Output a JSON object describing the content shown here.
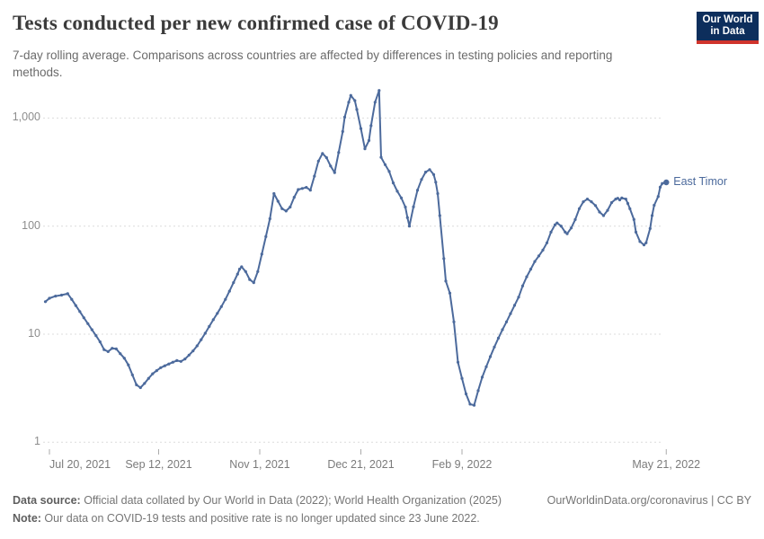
{
  "header": {
    "title": "Tests conducted per new confirmed case of COVID-19",
    "subtitle": "7-day rolling average. Comparisons across countries are affected by differences in testing policies and reporting methods.",
    "logo_line1": "Our World",
    "logo_line2": "in Data"
  },
  "footer": {
    "source_label": "Data source:",
    "source_text": " Official data collated by Our World in Data (2022); World Health Organization (2025)",
    "right_text": "OurWorldinData.org/coronavirus | CC BY",
    "note_label": "Note:",
    "note_text": " Our data on COVID-19 tests and positive rate is no longer updated since 23 June 2022."
  },
  "colors": {
    "line": "#4C6A9C",
    "grid": "#dcdcdc",
    "tick_mark": "#ababab",
    "logo_bg": "#0d2e5c",
    "logo_red": "#d0342c"
  },
  "chart_data": {
    "type": "line",
    "title": "Tests conducted per new confirmed case of COVID-19",
    "series_name": "East Timor",
    "yscale": "log",
    "ylim": [
      1,
      2000
    ],
    "grid": true,
    "legend_position": "end-of-line",
    "y_ticks": [
      {
        "label": "1",
        "value": 1
      },
      {
        "label": "10",
        "value": 10
      },
      {
        "label": "100",
        "value": 100
      },
      {
        "label": "1,000",
        "value": 1000
      }
    ],
    "x_ticks": [
      {
        "label": "Jul 20, 2021",
        "date": "2021-07-20"
      },
      {
        "label": "Sep 12, 2021",
        "date": "2021-09-12"
      },
      {
        "label": "Nov 1, 2021",
        "date": "2021-11-01"
      },
      {
        "label": "Dec 21, 2021",
        "date": "2021-12-21"
      },
      {
        "label": "Feb 9, 2022",
        "date": "2022-02-09"
      },
      {
        "label": "May 21, 2022",
        "date": "2022-05-21"
      }
    ],
    "points": [
      [
        "2021-07-18",
        20
      ],
      [
        "2021-07-20",
        21.5
      ],
      [
        "2021-07-23",
        22.5
      ],
      [
        "2021-07-26",
        23
      ],
      [
        "2021-07-29",
        23.7
      ],
      [
        "2021-07-31",
        21
      ],
      [
        "2021-08-02",
        18.4
      ],
      [
        "2021-08-04",
        16.2
      ],
      [
        "2021-08-06",
        14.2
      ],
      [
        "2021-08-08",
        12.5
      ],
      [
        "2021-08-10",
        11
      ],
      [
        "2021-08-12",
        9.7
      ],
      [
        "2021-08-14",
        8.5
      ],
      [
        "2021-08-16",
        7.2
      ],
      [
        "2021-08-18",
        6.9
      ],
      [
        "2021-08-20",
        7.4
      ],
      [
        "2021-08-22",
        7.3
      ],
      [
        "2021-08-24",
        6.6
      ],
      [
        "2021-08-26",
        6
      ],
      [
        "2021-08-28",
        5.2
      ],
      [
        "2021-08-30",
        4.2
      ],
      [
        "2021-09-01",
        3.4
      ],
      [
        "2021-09-03",
        3.2
      ],
      [
        "2021-09-05",
        3.5
      ],
      [
        "2021-09-07",
        3.9
      ],
      [
        "2021-09-09",
        4.3
      ],
      [
        "2021-09-11",
        4.6
      ],
      [
        "2021-09-13",
        4.9
      ],
      [
        "2021-09-15",
        5.1
      ],
      [
        "2021-09-17",
        5.3
      ],
      [
        "2021-09-19",
        5.5
      ],
      [
        "2021-09-21",
        5.7
      ],
      [
        "2021-09-23",
        5.6
      ],
      [
        "2021-09-25",
        5.9
      ],
      [
        "2021-09-27",
        6.4
      ],
      [
        "2021-09-29",
        7
      ],
      [
        "2021-10-01",
        7.8
      ],
      [
        "2021-10-03",
        8.9
      ],
      [
        "2021-10-05",
        10.2
      ],
      [
        "2021-10-07",
        11.8
      ],
      [
        "2021-10-09",
        13.6
      ],
      [
        "2021-10-11",
        15.6
      ],
      [
        "2021-10-13",
        18
      ],
      [
        "2021-10-15",
        21
      ],
      [
        "2021-10-17",
        25
      ],
      [
        "2021-10-19",
        30
      ],
      [
        "2021-10-21",
        36
      ],
      [
        "2021-10-22",
        40
      ],
      [
        "2021-10-23",
        42
      ],
      [
        "2021-10-25",
        38
      ],
      [
        "2021-10-27",
        32
      ],
      [
        "2021-10-29",
        30
      ],
      [
        "2021-10-31",
        38
      ],
      [
        "2021-11-02",
        55
      ],
      [
        "2021-11-04",
        80
      ],
      [
        "2021-11-06",
        117
      ],
      [
        "2021-11-08",
        200
      ],
      [
        "2021-11-10",
        170
      ],
      [
        "2021-11-12",
        145
      ],
      [
        "2021-11-14",
        138
      ],
      [
        "2021-11-16",
        150
      ],
      [
        "2021-11-18",
        185
      ],
      [
        "2021-11-20",
        218
      ],
      [
        "2021-11-22",
        223
      ],
      [
        "2021-11-24",
        228
      ],
      [
        "2021-11-26",
        215
      ],
      [
        "2021-11-28",
        290
      ],
      [
        "2021-11-30",
        400
      ],
      [
        "2021-12-02",
        470
      ],
      [
        "2021-12-04",
        430
      ],
      [
        "2021-12-06",
        360
      ],
      [
        "2021-12-08",
        313
      ],
      [
        "2021-12-10",
        480
      ],
      [
        "2021-12-12",
        750
      ],
      [
        "2021-12-13",
        1020
      ],
      [
        "2021-12-15",
        1400
      ],
      [
        "2021-12-16",
        1620
      ],
      [
        "2021-12-18",
        1450
      ],
      [
        "2021-12-19",
        1200
      ],
      [
        "2021-12-21",
        800
      ],
      [
        "2021-12-23",
        520
      ],
      [
        "2021-12-25",
        620
      ],
      [
        "2021-12-26",
        850
      ],
      [
        "2021-12-28",
        1400
      ],
      [
        "2021-12-30",
        1800
      ],
      [
        "2021-12-31",
        433
      ],
      [
        "2022-01-02",
        370
      ],
      [
        "2022-01-04",
        320
      ],
      [
        "2022-01-06",
        251
      ],
      [
        "2022-01-08",
        210
      ],
      [
        "2022-01-10",
        182
      ],
      [
        "2022-01-12",
        150
      ],
      [
        "2022-01-13",
        120
      ],
      [
        "2022-01-14",
        100
      ],
      [
        "2022-01-16",
        151
      ],
      [
        "2022-01-18",
        215
      ],
      [
        "2022-01-20",
        270
      ],
      [
        "2022-01-22",
        316
      ],
      [
        "2022-01-24",
        333
      ],
      [
        "2022-01-26",
        300
      ],
      [
        "2022-01-27",
        255
      ],
      [
        "2022-01-28",
        200
      ],
      [
        "2022-01-29",
        125
      ],
      [
        "2022-01-31",
        50
      ],
      [
        "2022-02-01",
        31
      ],
      [
        "2022-02-03",
        24
      ],
      [
        "2022-02-05",
        13
      ],
      [
        "2022-02-07",
        5.5
      ],
      [
        "2022-02-09",
        3.9
      ],
      [
        "2022-02-11",
        2.8
      ],
      [
        "2022-02-13",
        2.25
      ],
      [
        "2022-02-15",
        2.2
      ],
      [
        "2022-02-17",
        3
      ],
      [
        "2022-02-19",
        4
      ],
      [
        "2022-02-21",
        5
      ],
      [
        "2022-02-23",
        6.2
      ],
      [
        "2022-02-25",
        7.6
      ],
      [
        "2022-02-27",
        9.2
      ],
      [
        "2022-03-01",
        11
      ],
      [
        "2022-03-03",
        13
      ],
      [
        "2022-03-05",
        15.5
      ],
      [
        "2022-03-07",
        18.5
      ],
      [
        "2022-03-09",
        22
      ],
      [
        "2022-03-11",
        28
      ],
      [
        "2022-03-13",
        34
      ],
      [
        "2022-03-15",
        40
      ],
      [
        "2022-03-17",
        47
      ],
      [
        "2022-03-19",
        53
      ],
      [
        "2022-03-21",
        60
      ],
      [
        "2022-03-23",
        70
      ],
      [
        "2022-03-25",
        88
      ],
      [
        "2022-03-27",
        103
      ],
      [
        "2022-03-28",
        107
      ],
      [
        "2022-03-30",
        100
      ],
      [
        "2022-04-01",
        88
      ],
      [
        "2022-04-02",
        85
      ],
      [
        "2022-04-04",
        96
      ],
      [
        "2022-04-06",
        115
      ],
      [
        "2022-04-08",
        145
      ],
      [
        "2022-04-10",
        168
      ],
      [
        "2022-04-12",
        178
      ],
      [
        "2022-04-14",
        168
      ],
      [
        "2022-04-16",
        155
      ],
      [
        "2022-04-18",
        135
      ],
      [
        "2022-04-20",
        125
      ],
      [
        "2022-04-22",
        140
      ],
      [
        "2022-04-24",
        165
      ],
      [
        "2022-04-26",
        178
      ],
      [
        "2022-04-27",
        181
      ],
      [
        "2022-04-28",
        175
      ],
      [
        "2022-04-29",
        182
      ],
      [
        "2022-05-01",
        178
      ],
      [
        "2022-05-02",
        162
      ],
      [
        "2022-05-03",
        145
      ],
      [
        "2022-05-05",
        115
      ],
      [
        "2022-05-06",
        88
      ],
      [
        "2022-05-08",
        72
      ],
      [
        "2022-05-10",
        67
      ],
      [
        "2022-05-11",
        70
      ],
      [
        "2022-05-13",
        95
      ],
      [
        "2022-05-14",
        125
      ],
      [
        "2022-05-15",
        156
      ],
      [
        "2022-05-17",
        188
      ],
      [
        "2022-05-18",
        229
      ],
      [
        "2022-05-19",
        248
      ],
      [
        "2022-05-21",
        254
      ]
    ]
  }
}
